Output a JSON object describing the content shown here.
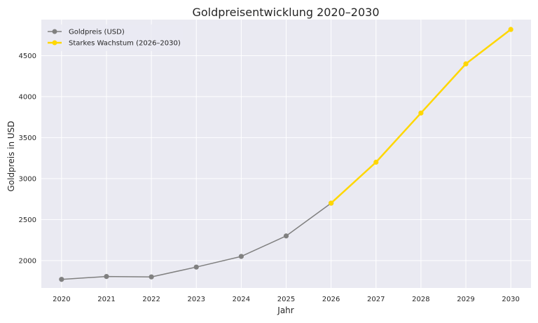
{
  "chart_data": {
    "type": "line",
    "title": "Goldpreisentwicklung 2020–2030",
    "xlabel": "Jahr",
    "ylabel": "Goldpreis in USD",
    "x": [
      2020,
      2021,
      2022,
      2023,
      2024,
      2025,
      2026,
      2027,
      2028,
      2029,
      2030
    ],
    "xticks": [
      "2020",
      "2021",
      "2022",
      "2023",
      "2024",
      "2025",
      "2026",
      "2027",
      "2028",
      "2029",
      "2030"
    ],
    "yticks": [
      "2000",
      "2500",
      "3000",
      "3500",
      "4000",
      "4500"
    ],
    "ylim": [
      1665,
      4940
    ],
    "xlim": [
      2019.55,
      2030.45
    ],
    "grid": true,
    "legend_position": "top-left",
    "series": [
      {
        "name": "Goldpreis (USD)",
        "color": "#808080",
        "x": [
          2020,
          2021,
          2022,
          2023,
          2024,
          2025,
          2026
        ],
        "values": [
          1770,
          1805,
          1800,
          1920,
          2050,
          2300,
          2700
        ]
      },
      {
        "name": "Starkes Wachstum (2026–2030)",
        "color": "#FFD700",
        "x": [
          2026,
          2027,
          2028,
          2029,
          2030
        ],
        "values": [
          2700,
          3200,
          3800,
          4400,
          4820
        ]
      }
    ]
  }
}
